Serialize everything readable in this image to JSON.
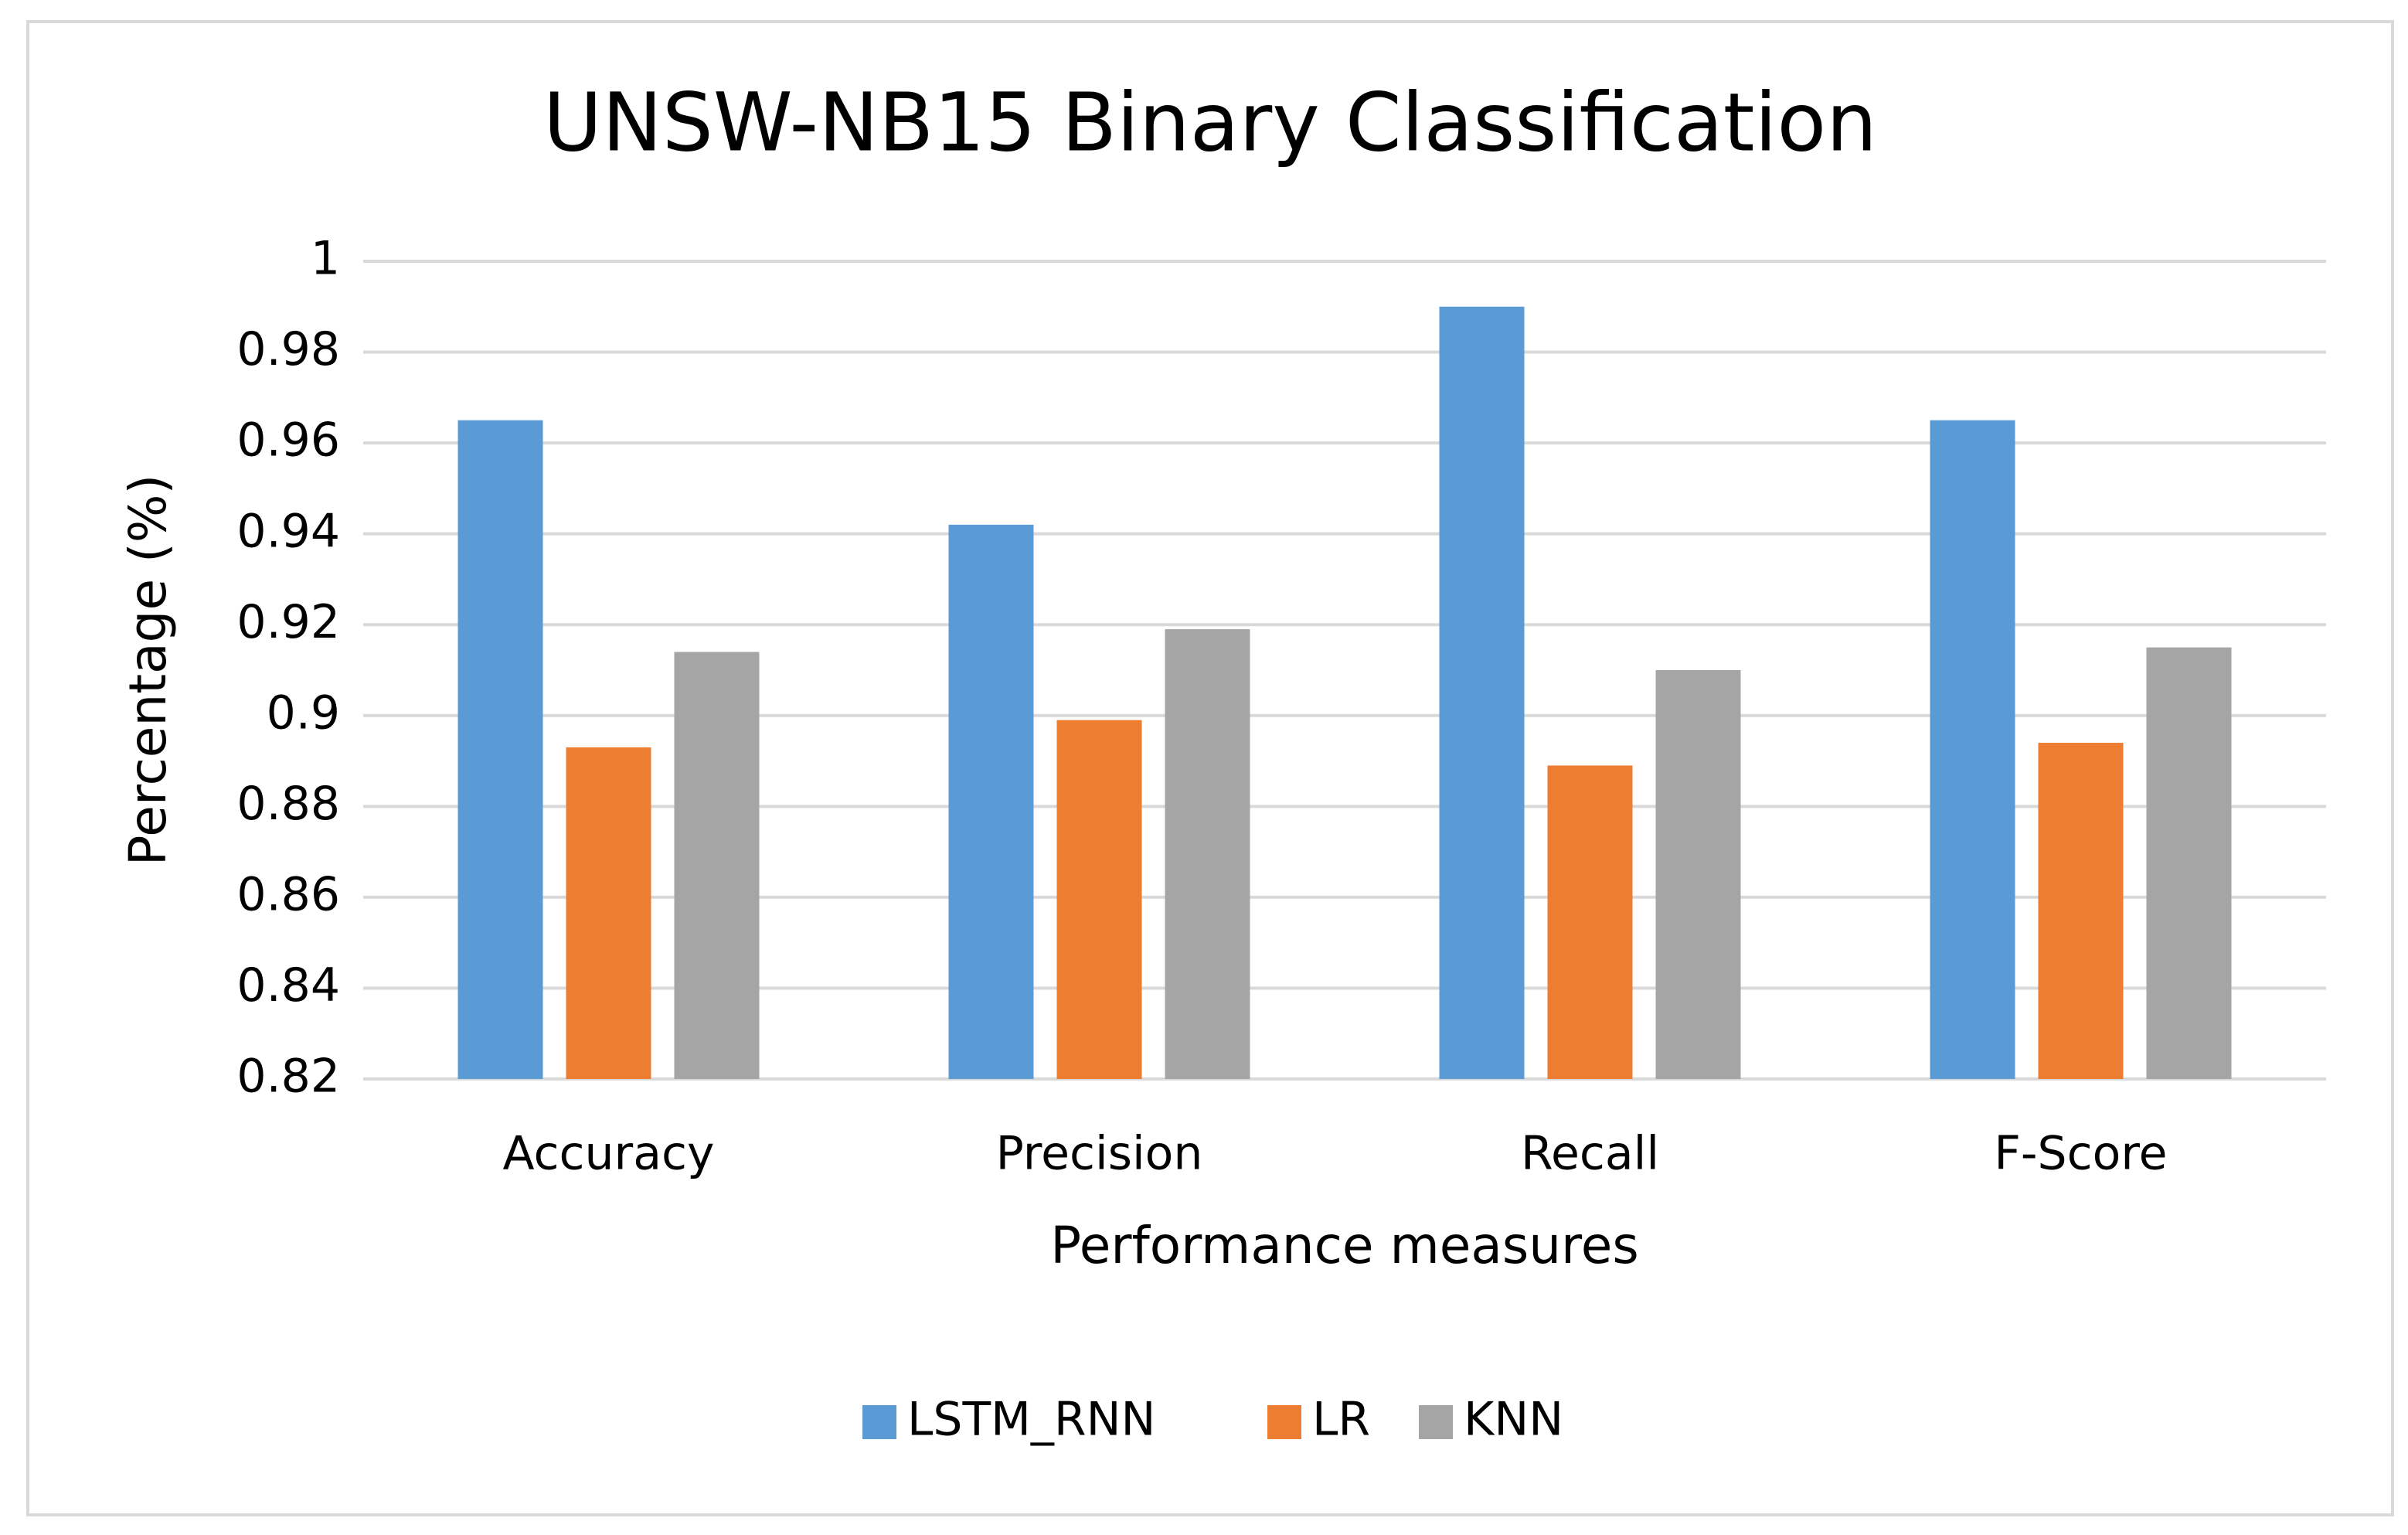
{
  "chart_data": {
    "type": "bar",
    "title": "UNSW-NB15 Binary Classification",
    "x_label": "Performance measures",
    "y_label": "Percentage (%)",
    "categories": [
      "Accuracy",
      "Precision",
      "Recall",
      "F-Score"
    ],
    "series": [
      {
        "name": "LSTM_RNN",
        "color": "#5b9bd5",
        "values": [
          0.965,
          0.942,
          0.99,
          0.965
        ]
      },
      {
        "name": "LR",
        "color": "#ed7d31",
        "values": [
          0.893,
          0.899,
          0.889,
          0.894
        ]
      },
      {
        "name": "KNN",
        "color": "#a5a5a5",
        "values": [
          0.914,
          0.919,
          0.91,
          0.915
        ]
      }
    ],
    "ylim": [
      0.82,
      1
    ],
    "yticks": [
      0.82,
      0.84,
      0.86,
      0.88,
      0.9,
      0.92,
      0.94,
      0.96,
      0.98,
      1
    ],
    "grid": true,
    "legend": "bottom"
  }
}
